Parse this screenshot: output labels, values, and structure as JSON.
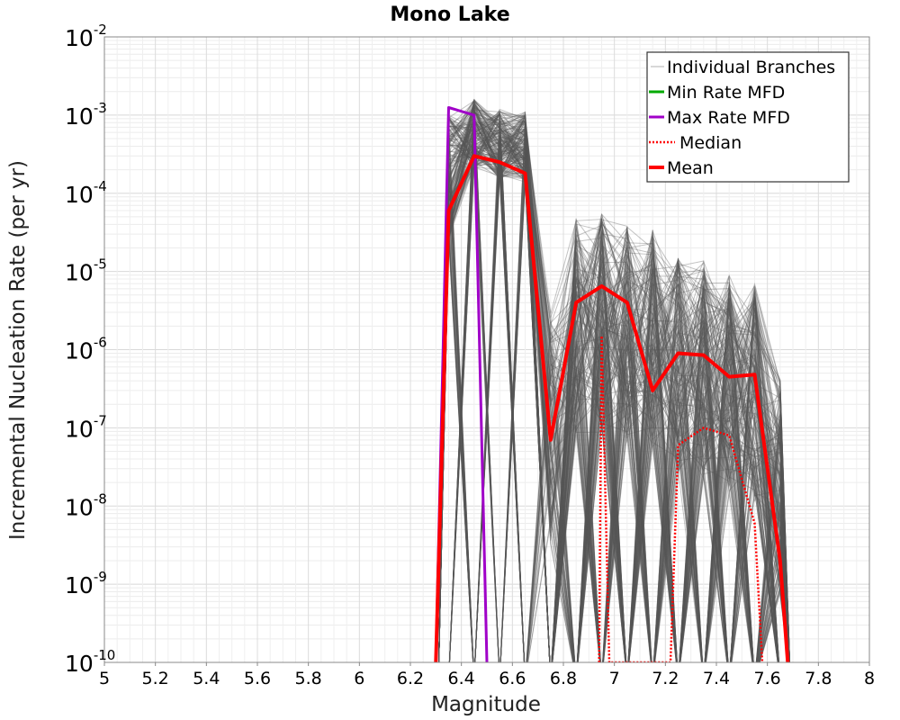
{
  "chart_data": {
    "type": "line",
    "title": "Mono Lake",
    "xlabel": "Magnitude",
    "ylabel": "Incremental Nucleation Rate (per yr)",
    "x_scale": "linear",
    "y_scale": "log",
    "xlim": [
      5,
      8
    ],
    "ylim": [
      1e-10,
      0.01
    ],
    "x_ticks": [
      "5",
      "5.2",
      "5.4",
      "5.6",
      "5.8",
      "6",
      "6.2",
      "6.4",
      "6.6",
      "6.8",
      "7",
      "7.2",
      "7.4",
      "7.6",
      "7.8",
      "8"
    ],
    "y_ticks": [
      {
        "base": "10",
        "exp": "-2"
      },
      {
        "base": "10",
        "exp": "-3"
      },
      {
        "base": "10",
        "exp": "-4"
      },
      {
        "base": "10",
        "exp": "-5"
      },
      {
        "base": "10",
        "exp": "-6"
      },
      {
        "base": "10",
        "exp": "-7"
      },
      {
        "base": "10",
        "exp": "-8"
      },
      {
        "base": "10",
        "exp": "-9"
      },
      {
        "base": "10",
        "exp": "-10"
      }
    ],
    "grid": true,
    "legend_position": "top-right",
    "series": [
      {
        "name": "Individual Branches",
        "color": "#555555",
        "style": "thin",
        "x": [
          6.35,
          6.45,
          6.55,
          6.65,
          6.75,
          6.85,
          6.95,
          7.05,
          7.15,
          7.25,
          7.35,
          7.45,
          7.55,
          7.65
        ],
        "max_envelope": [
          0.001,
          0.0016,
          0.0012,
          0.0011,
          3e-06,
          5e-05,
          5.5e-05,
          4e-05,
          3.5e-05,
          1.5e-05,
          1.4e-05,
          9e-06,
          7e-06,
          4.5e-07
        ]
      },
      {
        "name": "Min Rate MFD",
        "color": "#00aa00",
        "style": "solid",
        "x": [],
        "values": []
      },
      {
        "name": "Max Rate MFD",
        "color": "#a000c8",
        "style": "solid",
        "x": [
          6.3,
          6.35,
          6.45,
          6.5
        ],
        "values": [
          1e-10,
          0.00125,
          0.001,
          1e-10
        ]
      },
      {
        "name": "Median",
        "color": "#ff0000",
        "style": "dotted",
        "x": [
          6.94,
          6.95,
          6.98,
          7.22,
          7.25,
          7.35,
          7.45,
          7.55,
          7.58
        ],
        "values": [
          1e-10,
          1.5e-06,
          1e-10,
          1e-10,
          6e-08,
          1e-07,
          8e-08,
          6e-09,
          1e-10
        ]
      },
      {
        "name": "Mean",
        "color": "#ff0000",
        "style": "thick",
        "x": [
          6.3,
          6.35,
          6.45,
          6.55,
          6.65,
          6.75,
          6.85,
          6.95,
          7.05,
          7.15,
          7.25,
          7.35,
          7.45,
          7.55,
          7.65,
          7.68
        ],
        "values": [
          1e-10,
          6e-05,
          0.0003,
          0.00025,
          0.00018,
          7e-08,
          4e-06,
          6.5e-06,
          4e-06,
          3e-07,
          9e-07,
          8.5e-07,
          4.5e-07,
          4.8e-07,
          2e-09,
          1e-10
        ]
      }
    ]
  }
}
